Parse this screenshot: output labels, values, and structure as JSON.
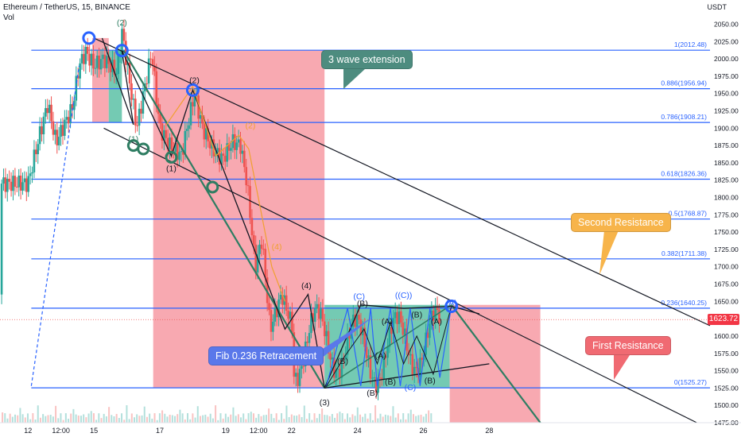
{
  "header": {
    "title": "Ethereum / TetherUS, 15, BINANCE",
    "sub": "Vol"
  },
  "price_axis": {
    "unit": "USDT",
    "current_price": "1623.72",
    "current_color": "#f23645"
  },
  "callouts": {
    "extension": "3 wave extension",
    "second_resistance": "Second Resistance",
    "first_resistance": "First Resistance",
    "fib_retracement": "Fib 0.236 Retracement"
  },
  "colors": {
    "fib_line": "#2962ff",
    "red_zone": "#f7a0a8",
    "green_zone": "#5cc1a6",
    "trend_green": "#2e7d62",
    "candle_up": "#26a69a",
    "candle_down": "#ef5350",
    "wave_blue": "#2962ff",
    "wave_orange": "#f0a030"
  },
  "chart_data": {
    "type": "candlestick",
    "y_range": [
      1475,
      2062
    ],
    "y_ticks": [
      1475,
      1500,
      1525,
      1550,
      1575,
      1600,
      1625,
      1650,
      1675,
      1700,
      1725,
      1750,
      1775,
      1800,
      1825,
      1850,
      1875,
      1900,
      1925,
      1950,
      1975,
      2000,
      2025,
      2050
    ],
    "x_ticks": [
      "12",
      "12:00",
      "15",
      "17",
      "19",
      "12:00",
      "22",
      "24",
      "26",
      "28"
    ],
    "x_tick_units": [
      0,
      1,
      2,
      4,
      6,
      7,
      8,
      10,
      12,
      14
    ],
    "x_range": [
      -0.85,
      20.7
    ],
    "fib_levels": [
      {
        "label": "1(2012.48)",
        "price": 2012.48
      },
      {
        "label": "0.886(1956.94)",
        "price": 1956.94
      },
      {
        "label": "0.786(1908.21)",
        "price": 1908.21
      },
      {
        "label": "0.618(1826.36)",
        "price": 1826.36
      },
      {
        "label": "0.5(1768.87)",
        "price": 1768.87
      },
      {
        "label": "0.382(1711.38)",
        "price": 1711.38
      },
      {
        "label": "0.236(1640.25)",
        "price": 1640.25
      },
      {
        "label": "0(1525.27)",
        "price": 1525.27
      }
    ],
    "price_path": [
      [
        0.0,
        1820
      ],
      [
        0.35,
        1890
      ],
      [
        0.6,
        1935
      ],
      [
        0.85,
        1880
      ],
      [
        1.1,
        1905
      ],
      [
        1.35,
        1930
      ],
      [
        1.55,
        1990
      ],
      [
        1.75,
        2010
      ],
      [
        2.0,
        1990
      ],
      [
        2.3,
        2000
      ],
      [
        2.7,
        1980
      ],
      [
        2.85,
        2040
      ],
      [
        3.3,
        1900
      ],
      [
        3.75,
        2010
      ],
      [
        4.0,
        1900
      ],
      [
        4.3,
        1875
      ],
      [
        4.65,
        1860
      ],
      [
        5.05,
        1950
      ],
      [
        5.3,
        1900
      ],
      [
        5.6,
        1870
      ],
      [
        5.9,
        1855
      ],
      [
        6.2,
        1880
      ],
      [
        6.45,
        1875
      ],
      [
        6.65,
        1820
      ],
      [
        6.9,
        1700
      ],
      [
        7.1,
        1740
      ],
      [
        7.35,
        1610
      ],
      [
        7.7,
        1660
      ],
      [
        8.05,
        1610
      ]
    ],
    "waves": [
      {
        "label": "(2)",
        "x": 2.85,
        "y": 2048,
        "color": "#2e7d62"
      },
      {
        "label": "(1)",
        "x": 3.2,
        "y": 1880,
        "color": "#2e7d62"
      },
      {
        "label": "(2)",
        "x": 5.05,
        "y": 1965,
        "color": "#131722"
      },
      {
        "label": "(1)",
        "x": 4.35,
        "y": 1838,
        "color": "#131722"
      },
      {
        "label": "(2)",
        "x": 6.75,
        "y": 1900,
        "color": "#f0a030"
      },
      {
        "label": "(4)",
        "x": 7.55,
        "y": 1725,
        "color": "#f0a030"
      },
      {
        "label": "(4)",
        "x": 8.45,
        "y": 1669,
        "color": "#131722"
      },
      {
        "label": "(3)",
        "x": 9.0,
        "y": 1500,
        "color": "#131722"
      },
      {
        "label": "(C)",
        "x": 10.05,
        "y": 1653,
        "color": "#2962ff"
      },
      {
        "label": "(B)",
        "x": 10.15,
        "y": 1643,
        "color": "#131722"
      },
      {
        "label": "((C))",
        "x": 11.4,
        "y": 1655,
        "color": "#2962ff"
      },
      {
        "label": "(A)",
        "x": 10.9,
        "y": 1617,
        "color": "#131722"
      },
      {
        "label": "(B)",
        "x": 11.8,
        "y": 1627,
        "color": "#131722"
      },
      {
        "label": "(A)",
        "x": 12.4,
        "y": 1617,
        "color": "#131722"
      },
      {
        "label": "(B)",
        "x": 9.55,
        "y": 1560,
        "color": "#131722"
      },
      {
        "label": "(A)",
        "x": 10.7,
        "y": 1568,
        "color": "#131722"
      },
      {
        "label": "(B)",
        "x": 11.0,
        "y": 1530,
        "color": "#131722"
      },
      {
        "label": "(B)",
        "x": 12.2,
        "y": 1532,
        "color": "#131722"
      },
      {
        "label": "(C)",
        "x": 11.6,
        "y": 1522,
        "color": "#2962ff"
      },
      {
        "label": "(B)",
        "x": 10.45,
        "y": 1514,
        "color": "#131722"
      },
      {
        "label": "(A)",
        "x": 12.85,
        "y": 1644,
        "color": "#2962ff"
      }
    ]
  }
}
